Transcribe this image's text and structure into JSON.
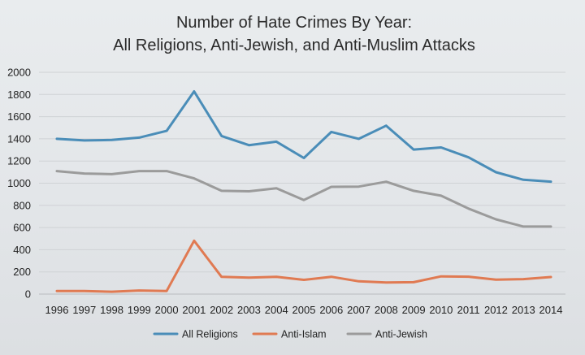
{
  "chart_data": {
    "type": "line",
    "title_lines": [
      "Number of Hate Crimes By Year:",
      "All Religions, Anti-Jewish, and Anti-Muslim Attacks"
    ],
    "xlabel": "",
    "ylabel": "",
    "x": [
      "1996",
      "1997",
      "1998",
      "1999",
      "2000",
      "2001",
      "2002",
      "2003",
      "2004",
      "2005",
      "2006",
      "2007",
      "2008",
      "2009",
      "2010",
      "2011",
      "2012",
      "2013",
      "2014"
    ],
    "ylim": [
      0,
      2000
    ],
    "yticks": [
      "0",
      "200",
      "400",
      "600",
      "800",
      "1000",
      "1200",
      "1400",
      "1600",
      "1800",
      "2000"
    ],
    "grid": "horizontal",
    "legend_position": "bottom",
    "series": [
      {
        "name": "All Religions",
        "color": "#4a8db8",
        "values": [
          1400,
          1385,
          1390,
          1411,
          1472,
          1828,
          1426,
          1343,
          1374,
          1227,
          1462,
          1400,
          1519,
          1303,
          1322,
          1233,
          1099,
          1031,
          1014
        ]
      },
      {
        "name": "Anti-Islam",
        "color": "#e07a52",
        "values": [
          27,
          28,
          21,
          32,
          28,
          481,
          155,
          149,
          156,
          128,
          156,
          115,
          105,
          107,
          160,
          157,
          130,
          135,
          154
        ]
      },
      {
        "name": "Anti-Jewish",
        "color": "#9b9b9b",
        "values": [
          1109,
          1087,
          1081,
          1109,
          1109,
          1043,
          931,
          927,
          954,
          848,
          967,
          969,
          1013,
          931,
          887,
          771,
          674,
          609,
          609
        ]
      }
    ]
  }
}
